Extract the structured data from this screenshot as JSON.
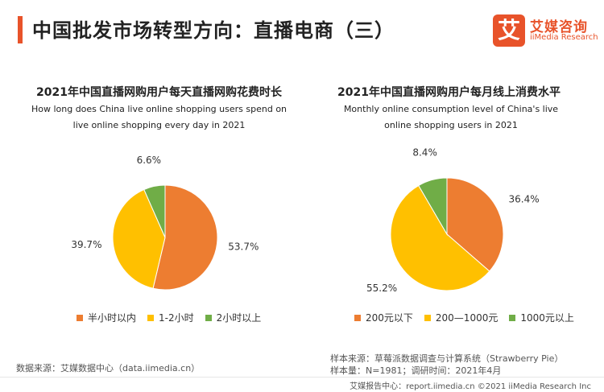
{
  "header": {
    "title": "中国批发市场转型方向：直播电商（三）",
    "logo_mark": "艾",
    "logo_cn": "艾媒咨询",
    "logo_en": "iiMedia Research"
  },
  "colors": {
    "accent": "#e8532a",
    "orange": "#ed7d31",
    "yellow": "#ffc000",
    "green": "#70ad47"
  },
  "chart_data": [
    {
      "type": "pie",
      "title": "2021年中国直播网购用户每天直播网购花费时长",
      "subtitle": "How long does China live online shopping users spend on live online shopping every day in 2021",
      "categories": [
        "半小时以内",
        "1-2小时",
        "2小时以上"
      ],
      "values": [
        53.7,
        39.7,
        6.6
      ],
      "labels": [
        "53.7%",
        "39.7%",
        "6.6%"
      ],
      "colors": [
        "#ed7d31",
        "#ffc000",
        "#70ad47"
      ],
      "legend": "bottom"
    },
    {
      "type": "pie",
      "title": "2021年中国直播网购用户每月线上消费水平",
      "subtitle": "Monthly online consumption level of China's live online shopping users in 2021",
      "categories": [
        "200元以下",
        "200—1000元",
        "1000元以上"
      ],
      "values": [
        36.4,
        55.2,
        8.4
      ],
      "labels": [
        "36.4%",
        "55.2%",
        "8.4%"
      ],
      "colors": [
        "#ed7d31",
        "#ffc000",
        "#70ad47"
      ],
      "legend": "bottom"
    }
  ],
  "footer": {
    "source_left": "数据来源：艾媒数据中心（data.iimedia.cn）",
    "sample_source": "样本来源：草莓派数据调查与计算系统（Strawberry Pie）",
    "sample_size": "样本量：N=1981；调研时间：2021年4月",
    "bottom": "艾媒报告中心：report.iimedia.cn ©2021  iiMedia Research  Inc"
  }
}
